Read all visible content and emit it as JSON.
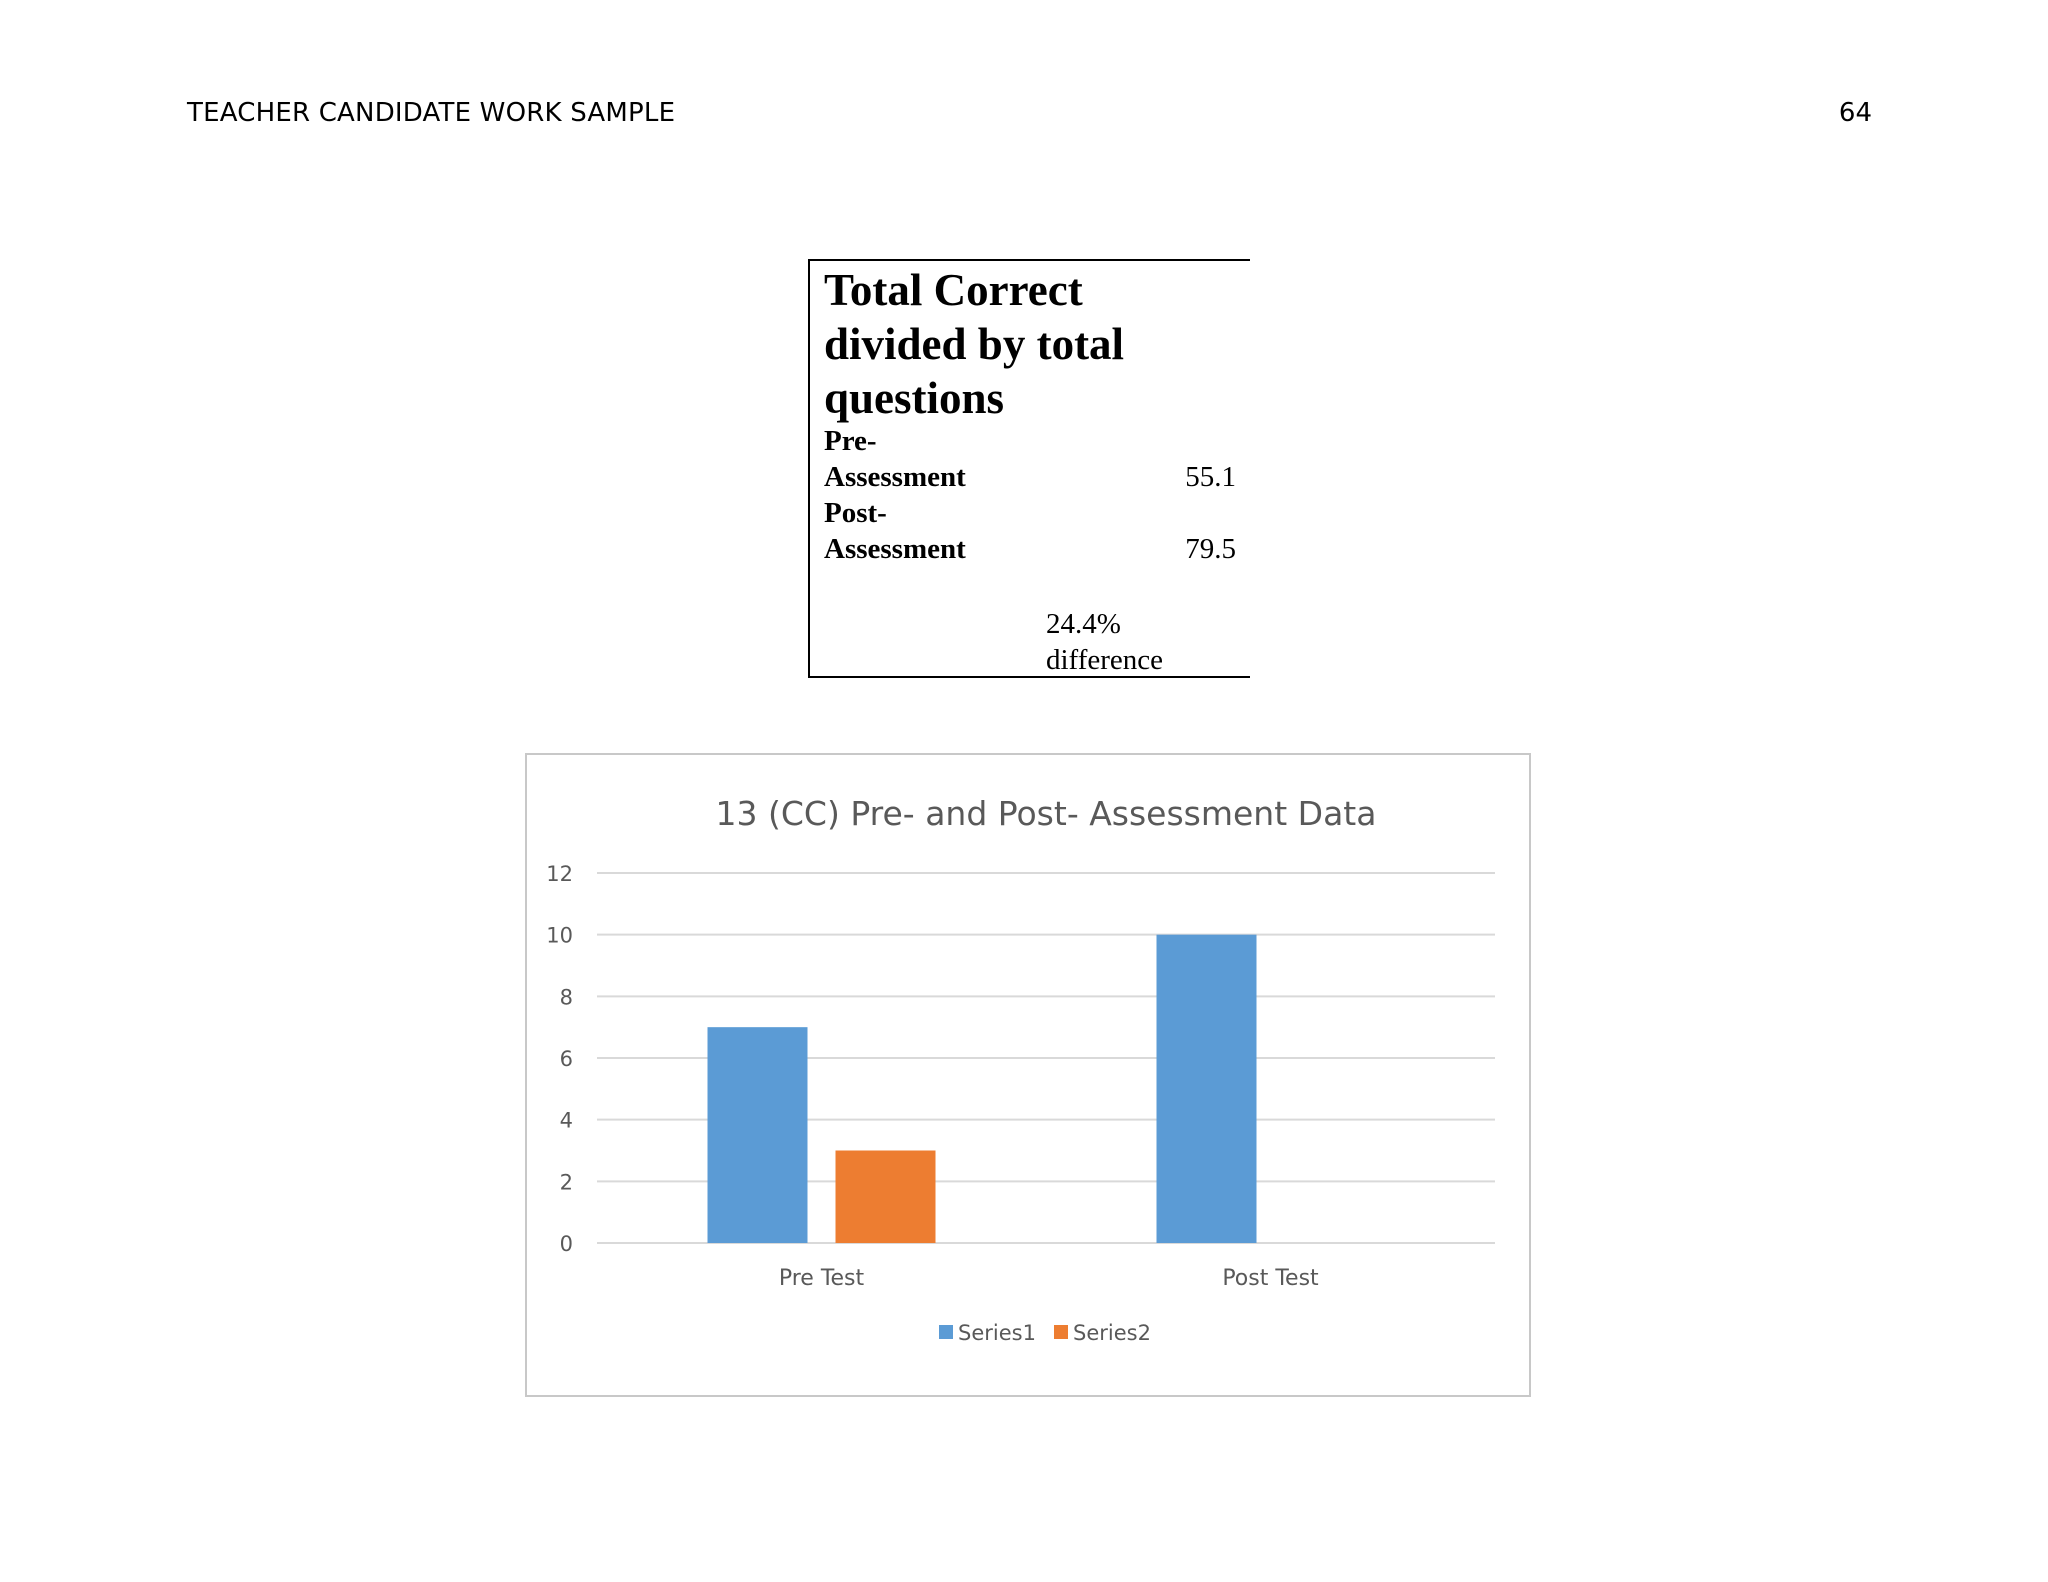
{
  "header": {
    "running_head": "TEACHER CANDIDATE WORK SAMPLE",
    "page_number": "64"
  },
  "score_table": {
    "title": "Total Correct divided by total questions",
    "rows": [
      {
        "label_line1": "Pre-",
        "label_line2": "Assessment",
        "value": "55.1"
      },
      {
        "label_line1": "Post-",
        "label_line2": "Assessment",
        "value": "79.5"
      }
    ],
    "difference_line1": "24.4%",
    "difference_line2": "difference"
  },
  "chart_data": {
    "type": "bar",
    "title": "13 (CC) Pre- and Post- Assessment Data",
    "categories": [
      "Pre Test",
      "Post Test"
    ],
    "series": [
      {
        "name": "Series1",
        "values": [
          7,
          10
        ],
        "color": "#5b9bd5"
      },
      {
        "name": "Series2",
        "values": [
          3,
          0
        ],
        "color": "#ed7d31"
      }
    ],
    "ylim": [
      0,
      12
    ],
    "yticks": [
      0,
      2,
      4,
      6,
      8,
      10,
      12
    ],
    "grid": true,
    "legend": "bottom"
  }
}
